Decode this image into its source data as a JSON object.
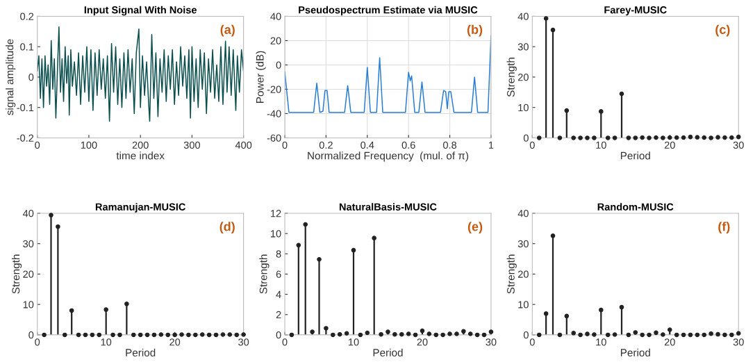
{
  "chart_data": [
    {
      "type": "line",
      "title": "Input Signal With Noise",
      "xlabel": "time index",
      "ylabel": "signal amplitude",
      "annotations": [
        "(a)"
      ],
      "grid": false,
      "marker": "none",
      "line_style": "solid",
      "xlim": [
        0,
        400
      ],
      "xticks": [
        0,
        100,
        200,
        300,
        400
      ],
      "ylim": [
        -0.2,
        0.2
      ],
      "yticks": [
        -0.2,
        -0.1,
        0,
        0.1,
        0.2
      ],
      "series": [
        {
          "color": "#0b4f4f",
          "x": [
            0,
            3,
            6,
            9,
            12,
            15,
            18,
            21,
            24,
            27,
            30,
            33,
            36,
            39,
            42,
            45,
            48,
            51,
            54,
            57,
            60,
            62,
            65,
            68,
            72,
            76,
            80,
            84,
            88,
            92,
            96,
            100,
            104,
            108,
            112,
            116,
            120,
            124,
            128,
            132,
            136,
            140,
            144,
            148,
            152,
            156,
            160,
            164,
            168,
            172,
            176,
            180,
            184,
            188,
            192,
            197,
            200,
            204,
            208,
            212,
            216,
            218,
            222,
            226,
            230,
            234,
            238,
            242,
            246,
            250,
            254,
            258,
            262,
            266,
            270,
            274,
            278,
            282,
            286,
            290,
            294,
            297,
            300,
            304,
            308,
            312,
            316,
            320,
            324,
            328,
            332,
            336,
            340,
            344,
            348,
            352,
            356,
            360,
            365,
            368,
            372,
            376,
            380,
            385,
            388,
            392,
            396,
            400
          ],
          "values": [
            0.02,
            0.07,
            -0.07,
            0.06,
            -0.1,
            0.07,
            -0.03,
            0.04,
            -0.09,
            0.12,
            -0.04,
            0.06,
            -0.135,
            0.02,
            0.165,
            -0.05,
            0.06,
            -0.08,
            0.1,
            -0.02,
            0.07,
            -0.125,
            0.09,
            -0.03,
            0.05,
            -0.06,
            0.08,
            -0.09,
            0.07,
            -0.05,
            0.1,
            -0.08,
            0.09,
            -0.11,
            0.08,
            -0.06,
            0.09,
            -0.04,
            0.06,
            -0.07,
            0.07,
            -0.145,
            0.11,
            -0.05,
            0.1,
            -0.09,
            0.06,
            -0.1,
            0.08,
            -0.07,
            0.09,
            -0.05,
            0.06,
            -0.12,
            0.08,
            0.158,
            -0.1,
            0.07,
            -0.06,
            0.05,
            -0.09,
            -0.145,
            0.14,
            -0.07,
            0.08,
            -0.13,
            0.06,
            -0.05,
            0.09,
            -0.08,
            0.07,
            -0.04,
            0.09,
            -0.09,
            0.05,
            -0.06,
            0.1,
            -0.03,
            0.07,
            -0.07,
            0.09,
            -0.135,
            0.1,
            -0.08,
            0.06,
            -0.1,
            0.09,
            -0.04,
            0.08,
            -0.12,
            0.06,
            -0.05,
            0.09,
            -0.07,
            0.04,
            -0.08,
            0.1,
            -0.09,
            0.118,
            -0.05,
            0.1,
            -0.06,
            0.09,
            -0.11,
            0.07,
            -0.05,
            0.09,
            0.02
          ]
        }
      ]
    },
    {
      "type": "line",
      "title": "Pseudospectrum Estimate via MUSIC",
      "xlabel": "Normalized Frequency  (mul. of π)",
      "ylabel": "Power (dB)",
      "annotations": [
        "(b)"
      ],
      "grid": true,
      "marker": "none",
      "line_style": "solid",
      "xlim": [
        0,
        1
      ],
      "xticks": [
        0,
        0.2,
        0.4,
        0.6,
        0.8,
        1
      ],
      "ylim": [
        -60,
        40
      ],
      "yticks": [
        -60,
        -40,
        -20,
        0,
        20,
        40
      ],
      "series": [
        {
          "color": "#2a7fd4",
          "x": [
            0,
            0.02,
            0.14,
            0.155,
            0.17,
            0.185,
            0.195,
            0.205,
            0.215,
            0.29,
            0.305,
            0.32,
            0.385,
            0.4,
            0.415,
            0.445,
            0.46,
            0.475,
            0.585,
            0.6,
            0.608,
            0.615,
            0.63,
            0.65,
            0.665,
            0.68,
            0.755,
            0.77,
            0.78,
            0.788,
            0.795,
            0.805,
            0.82,
            0.905,
            0.92,
            0.935,
            0.985,
            1
          ],
          "values": [
            -6,
            -39,
            -39,
            -15,
            -39,
            -38,
            -21,
            -21,
            -39,
            -39,
            -17,
            -39,
            -39,
            -2,
            -39,
            -39,
            6,
            -39,
            -39,
            -6,
            -13,
            -9,
            -39,
            -39,
            -14,
            -39,
            -39,
            -21,
            -22,
            -36,
            -22,
            -22,
            -39,
            -39,
            -10,
            -39,
            -39,
            24
          ]
        }
      ]
    },
    {
      "type": "lollipop",
      "title": "Farey-MUSIC",
      "xlabel": "Period",
      "ylabel": "Strength",
      "annotations": [
        "(c)"
      ],
      "grid": false,
      "marker": "circle",
      "xlim": [
        0,
        30
      ],
      "xticks": [
        0,
        10,
        20,
        30
      ],
      "ylim": [
        0,
        40
      ],
      "yticks": [
        0,
        10,
        20,
        30,
        40
      ],
      "series": [
        {
          "color": "#222222",
          "x": [
            1,
            2,
            3,
            4,
            5,
            6,
            7,
            8,
            9,
            10,
            11,
            12,
            13,
            14,
            15,
            16,
            17,
            18,
            19,
            20,
            21,
            22,
            23,
            24,
            25,
            26,
            27,
            28,
            29,
            30
          ],
          "values": [
            0,
            39.3,
            35.5,
            0,
            9,
            0,
            0,
            0,
            0,
            8.7,
            0,
            0,
            14.5,
            0,
            0,
            0.1,
            0,
            0.1,
            0,
            0.1,
            0.1,
            0.1,
            0.3,
            0.2,
            0.1,
            0,
            0.2,
            0.1,
            0.1,
            0.3
          ]
        }
      ]
    },
    {
      "type": "lollipop",
      "title": "Ramanujan-MUSIC",
      "xlabel": "Period",
      "ylabel": "Strength",
      "annotations": [
        "(d)"
      ],
      "grid": false,
      "marker": "circle",
      "xlim": [
        0,
        30
      ],
      "xticks": [
        0,
        10,
        20,
        30
      ],
      "ylim": [
        0,
        40
      ],
      "yticks": [
        0,
        10,
        20,
        30,
        40
      ],
      "series": [
        {
          "color": "#222222",
          "x": [
            1,
            2,
            3,
            4,
            5,
            6,
            7,
            8,
            9,
            10,
            11,
            12,
            13,
            14,
            15,
            16,
            17,
            18,
            19,
            20,
            21,
            22,
            23,
            24,
            25,
            26,
            27,
            28,
            29,
            30
          ],
          "values": [
            0,
            39.4,
            35.6,
            0,
            8,
            0,
            0,
            0,
            0,
            8.3,
            0,
            0,
            10.2,
            0,
            0,
            0,
            0,
            0.1,
            0,
            0,
            0.1,
            0,
            0,
            0.1,
            0,
            0,
            0.1,
            0.1,
            0,
            0.1
          ]
        }
      ]
    },
    {
      "type": "lollipop",
      "title": "NaturalBasis-MUSIC",
      "xlabel": "Period",
      "ylabel": "Strength",
      "annotations": [
        "(e)"
      ],
      "grid": false,
      "marker": "circle",
      "xlim": [
        0,
        30
      ],
      "xticks": [
        0,
        10,
        20,
        30
      ],
      "ylim": [
        0,
        12
      ],
      "yticks": [
        0,
        2,
        4,
        6,
        8,
        10,
        12
      ],
      "series": [
        {
          "color": "#222222",
          "x": [
            1,
            2,
            3,
            4,
            5,
            6,
            7,
            8,
            9,
            10,
            11,
            12,
            13,
            14,
            15,
            16,
            17,
            18,
            19,
            20,
            21,
            22,
            23,
            24,
            25,
            26,
            27,
            28,
            29,
            30
          ],
          "values": [
            0,
            8.85,
            10.9,
            0.3,
            7.45,
            0.65,
            0,
            0.05,
            0.15,
            8.35,
            0,
            0.2,
            9.55,
            0.05,
            0.3,
            0.05,
            0.05,
            0.1,
            0,
            0.4,
            0.1,
            0,
            0,
            0.1,
            0.1,
            0.35,
            0.1,
            0,
            0,
            0.3
          ]
        }
      ]
    },
    {
      "type": "lollipop",
      "title": "Random-MUSIC",
      "xlabel": "Period",
      "ylabel": "Strength",
      "annotations": [
        "(f)"
      ],
      "grid": false,
      "marker": "circle",
      "xlim": [
        0,
        30
      ],
      "xticks": [
        0,
        10,
        20,
        30
      ],
      "ylim": [
        0,
        40
      ],
      "yticks": [
        0,
        10,
        20,
        30,
        40
      ],
      "series": [
        {
          "color": "#222222",
          "x": [
            1,
            2,
            3,
            4,
            5,
            6,
            7,
            8,
            9,
            10,
            11,
            12,
            13,
            14,
            15,
            16,
            17,
            18,
            19,
            20,
            21,
            22,
            23,
            24,
            25,
            26,
            27,
            28,
            29,
            30
          ],
          "values": [
            0,
            7,
            32.6,
            0,
            6.2,
            0.6,
            0,
            0.3,
            0.1,
            8.2,
            0,
            0.1,
            9.1,
            0,
            0.8,
            0,
            0,
            0.7,
            0.1,
            1.7,
            0,
            0,
            0,
            0,
            0,
            0.4,
            0.2,
            0,
            0,
            0.5
          ]
        }
      ]
    }
  ]
}
